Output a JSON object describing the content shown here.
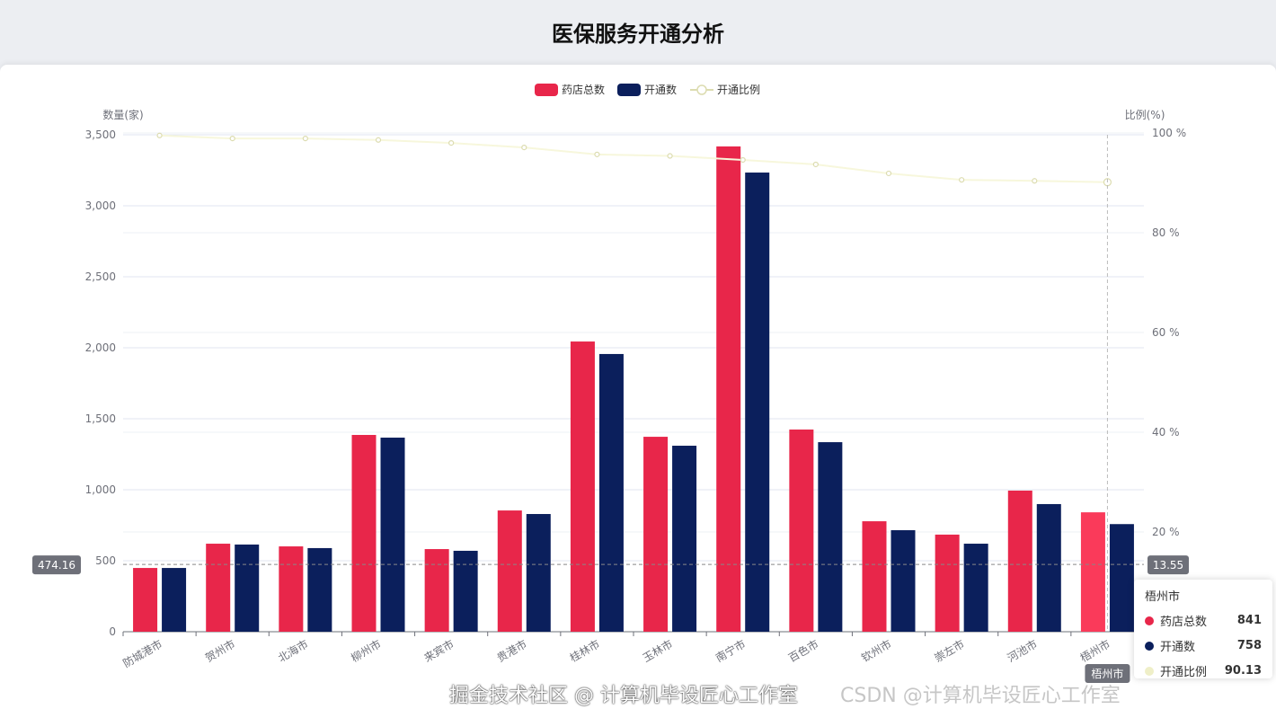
{
  "page": {
    "title": "医保服务开通分析"
  },
  "chart_data": {
    "type": "bar",
    "title": "医保服务开通分析",
    "categories": [
      "防城港市",
      "贺州市",
      "北海市",
      "柳州市",
      "来宾市",
      "贵港市",
      "桂林市",
      "玉林市",
      "南宁市",
      "百色市",
      "钦州市",
      "崇左市",
      "河池市",
      "梧州市"
    ],
    "series": [
      {
        "name": "药店总数",
        "type": "bar",
        "axis": "left",
        "color": "#e8264a",
        "values": [
          449,
          620,
          601,
          1386,
          582,
          854,
          2044,
          1373,
          3418,
          1424,
          778,
          684,
          994,
          841
        ]
      },
      {
        "name": "开通数",
        "type": "bar",
        "axis": "left",
        "color": "#0b1f5c",
        "values": [
          449,
          614,
          589,
          1367,
          570,
          829,
          1956,
          1310,
          3234,
          1335,
          715,
          620,
          899,
          758
        ]
      },
      {
        "name": "开通比例",
        "type": "line",
        "axis": "right",
        "color": "#efefc8",
        "values": [
          99.5,
          98.9,
          98.9,
          98.6,
          98.0,
          97.1,
          95.7,
          95.4,
          94.6,
          93.7,
          91.9,
          90.6,
          90.4,
          90.13
        ]
      }
    ],
    "ylabel": "数量(家)",
    "y2label": "比例(%)",
    "ylim": [
      0,
      3500
    ],
    "yticks": [
      0,
      500,
      1000,
      1500,
      2000,
      2500,
      3000,
      3500
    ],
    "ytick_labels": [
      "0",
      "500",
      "1,000",
      "1,500",
      "2,000",
      "2,500",
      "3,000",
      "3,500"
    ],
    "y2lim": [
      0,
      100
    ],
    "y2ticks": [
      20,
      40,
      60,
      80,
      100
    ],
    "y2tick_labels": [
      "20 %",
      "40 %",
      "60 %",
      "80 %",
      "100 %"
    ],
    "legend": {
      "position": "top-center",
      "items": [
        "药店总数",
        "开通数",
        "开通比例"
      ]
    },
    "grid": true,
    "axis_pointer": {
      "category": "梧州市",
      "category_label": "梧州市",
      "left_value": "474.16",
      "right_value": "13.55",
      "left_value_num": 474.16
    }
  },
  "tooltip": {
    "title": "梧州市",
    "rows": [
      {
        "name": "药店总数",
        "value": "841",
        "color": "#e8264a"
      },
      {
        "name": "开通数",
        "value": "758",
        "color": "#0b1f5c"
      },
      {
        "name": "开通比例",
        "value": "90.13",
        "color": "#efefc8"
      }
    ]
  },
  "watermark": {
    "primary": "掘金技术社区 @ 计算机毕设匠心工作室",
    "secondary": "CSDN @计算机毕设匠心工作室"
  }
}
